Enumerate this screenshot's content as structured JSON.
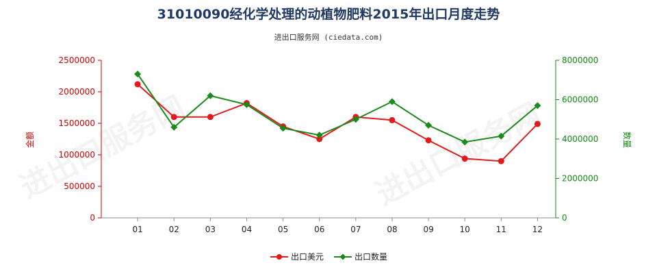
{
  "chart_data": {
    "type": "line",
    "title": "31010090经化学处理的动植物肥料2015年出口月度走势",
    "subtitle": "进出口服务网 (ciedata.com)",
    "categories": [
      "01",
      "02",
      "03",
      "04",
      "05",
      "06",
      "07",
      "08",
      "09",
      "10",
      "11",
      "12"
    ],
    "y_left": {
      "label": "金额",
      "range": [
        0,
        2500000
      ],
      "ticks": [
        "0",
        "500000",
        "1000000",
        "1500000",
        "2000000",
        "2500000"
      ]
    },
    "y_right": {
      "label": "数量",
      "range": [
        0,
        8000000
      ],
      "ticks": [
        "0",
        "2000000",
        "4000000",
        "6000000",
        "8000000"
      ]
    },
    "series": [
      {
        "name": "出口美元",
        "axis": "left",
        "color": "#e31a1c",
        "values": [
          2120000,
          1600000,
          1600000,
          1820000,
          1450000,
          1250000,
          1600000,
          1550000,
          1230000,
          940000,
          900000,
          1490000
        ]
      },
      {
        "name": "出口数量",
        "axis": "right",
        "color": "#1a8a1a",
        "values": [
          7300000,
          4600000,
          6200000,
          5750000,
          4550000,
          4200000,
          5000000,
          5900000,
          4700000,
          3850000,
          4150000,
          5700000
        ]
      }
    ],
    "legend_position": "bottom-center",
    "grid": false
  }
}
